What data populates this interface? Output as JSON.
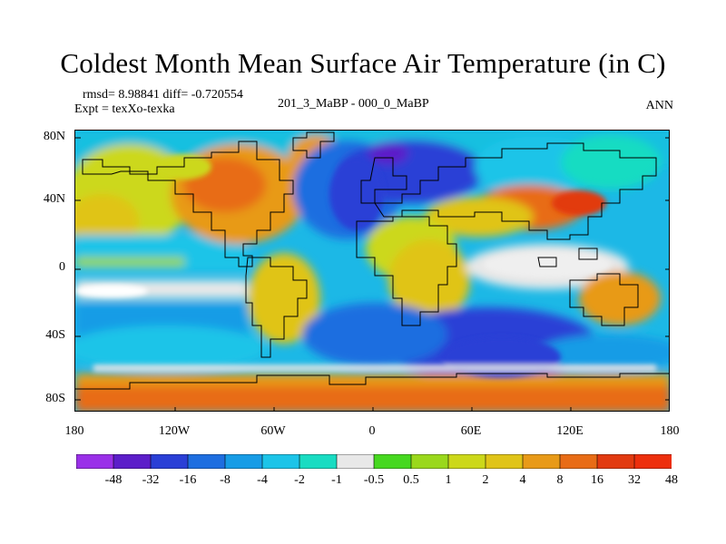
{
  "figure": {
    "title": "Coldest Month Mean Surface Air Temperature (in C)",
    "stats": "rmsd= 8.98841 diff= -0.720554",
    "experiment": "Expt = texXo-texka",
    "subtitle": "201_3_MaBP - 000_0_MaBP",
    "season": "ANN"
  },
  "map": {
    "lat_ticks": [
      "80N",
      "40N",
      "0",
      "40S",
      "80S"
    ],
    "lon_ticks": [
      "180",
      "120W",
      "60W",
      "0",
      "60E",
      "120E",
      "180"
    ]
  },
  "colorbar": {
    "colors": [
      "#9a30e8",
      "#5c1ec9",
      "#2a3fd6",
      "#1e6ee0",
      "#179ce6",
      "#1cc4e8",
      "#19dcc2",
      "#e8e8e8",
      "#46d820",
      "#9ad81c",
      "#ccd81a",
      "#e0c418",
      "#e89a18",
      "#e86c16",
      "#e23a10",
      "#ed2f0d"
    ],
    "labels": [
      "-48",
      "-32",
      "-16",
      "-8",
      "-4",
      "-2",
      "-1",
      "-0.5",
      "0.5",
      "1",
      "2",
      "4",
      "8",
      "16",
      "32",
      "48"
    ]
  }
}
